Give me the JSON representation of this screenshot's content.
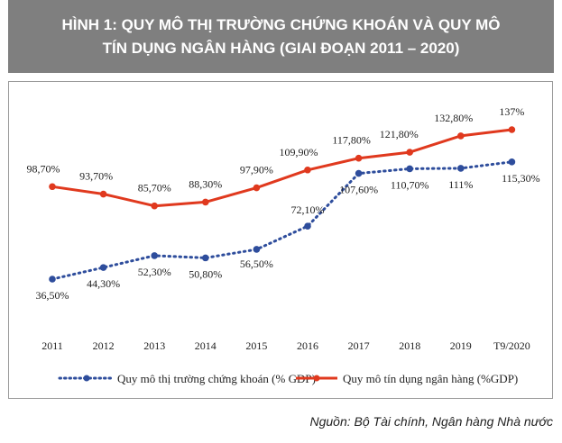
{
  "header": {
    "line1": "HÌNH 1: QUY MÔ THỊ TRƯỜNG CHỨNG KHOÁN VÀ QUY MÔ",
    "line2": "TÍN DỤNG NGÂN HÀNG (GIAI ĐOẠN 2011 – 2020)"
  },
  "source": "Nguồn: Bộ Tài chính, Ngân hàng Nhà nước",
  "colors": {
    "stock": "#2e4d9c",
    "credit": "#e0391e",
    "header_bg": "#7f7f7f"
  },
  "chart_data": {
    "type": "line",
    "title": "HÌNH 1: QUY MÔ THỊ TRƯỜNG CHỨNG KHOÁN VÀ QUY MÔ TÍN DỤNG NGÂN HÀNG (GIAI ĐOẠN 2011 – 2020)",
    "categories": [
      "2011",
      "2012",
      "2013",
      "2014",
      "2015",
      "2016",
      "2017",
      "2018",
      "2019",
      "T9/2020"
    ],
    "series": [
      {
        "name": "Quy mô thị trường chứng khoán (% GDP)",
        "values": [
          36.5,
          44.3,
          52.3,
          50.8,
          56.5,
          72.1,
          107.6,
          110.7,
          111,
          115.3
        ],
        "labels": [
          "36,50%",
          "44,30%",
          "52,30%",
          "50,80%",
          "56,50%",
          "72,10%",
          "107,60%",
          "110,70%",
          "111%",
          "115,30%"
        ],
        "style": "dotted",
        "color": "#2e4d9c"
      },
      {
        "name": "Quy mô tín dụng ngân hàng (%GDP)",
        "values": [
          98.7,
          93.7,
          85.7,
          88.3,
          97.9,
          109.9,
          117.8,
          121.8,
          132.8,
          137
        ],
        "labels": [
          "98,70%",
          "93,70%",
          "85,70%",
          "88,30%",
          "97,90%",
          "109,90%",
          "117,80%",
          "121,80%",
          "132,80%",
          "137%"
        ],
        "style": "solid",
        "color": "#e0391e"
      }
    ],
    "legend_position": "bottom",
    "grid": false
  }
}
